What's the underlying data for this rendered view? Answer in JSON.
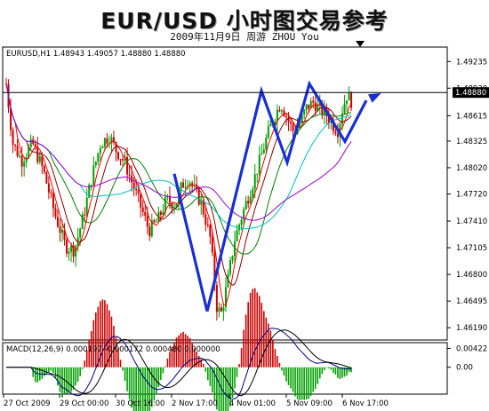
{
  "header": {
    "title": "EUR/USD 小时图交易参考",
    "subtitle": "2009年11月9日  周游 ZHOU You"
  },
  "chart_data": [
    {
      "type": "candlestick",
      "legend": "EURUSD,H1  1.48943 1.49057 1.48880 1.48880",
      "ylim": [
        1.4605,
        1.494
      ],
      "y_ticks": [
        "1.49235",
        "1.48930",
        "1.48615",
        "1.48325",
        "1.48020",
        "1.47720",
        "1.47410",
        "1.47105",
        "1.46800",
        "1.46495",
        "1.46190"
      ],
      "x_ticks": [
        "27 Oct 2009",
        "29 Oct 00:00",
        "30 Oct 16:00",
        "2 Nov 17:00",
        "4 Nov 01:00",
        "5 Nov 09:00",
        "6 Nov 17:00"
      ],
      "current_price": "1.48880",
      "price_path": [
        [
          0,
          1.4898
        ],
        [
          6,
          1.483
        ],
        [
          14,
          1.481
        ],
        [
          24,
          1.483
        ],
        [
          34,
          1.4798
        ],
        [
          44,
          1.475
        ],
        [
          54,
          1.4712
        ],
        [
          62,
          1.4708
        ],
        [
          70,
          1.4745
        ],
        [
          78,
          1.4792
        ],
        [
          86,
          1.483
        ],
        [
          94,
          1.4838
        ],
        [
          100,
          1.4822
        ],
        [
          108,
          1.4808
        ],
        [
          116,
          1.478
        ],
        [
          124,
          1.4752
        ],
        [
          130,
          1.473
        ],
        [
          138,
          1.4742
        ],
        [
          146,
          1.4765
        ],
        [
          154,
          1.476
        ],
        [
          160,
          1.4782
        ],
        [
          166,
          1.479
        ],
        [
          172,
          1.4775
        ],
        [
          178,
          1.476
        ],
        [
          186,
          1.472
        ],
        [
          192,
          1.464
        ],
        [
          196,
          1.4636
        ],
        [
          202,
          1.4675
        ],
        [
          208,
          1.472
        ],
        [
          214,
          1.4745
        ],
        [
          220,
          1.4768
        ],
        [
          226,
          1.479
        ],
        [
          232,
          1.4815
        ],
        [
          238,
          1.484
        ],
        [
          244,
          1.486
        ],
        [
          250,
          1.4876
        ],
        [
          256,
          1.4858
        ],
        [
          262,
          1.4842
        ],
        [
          268,
          1.4855
        ],
        [
          274,
          1.4872
        ],
        [
          280,
          1.4877
        ],
        [
          286,
          1.4868
        ],
        [
          292,
          1.4862
        ],
        [
          298,
          1.485
        ],
        [
          302,
          1.4845
        ],
        [
          306,
          1.4868
        ],
        [
          310,
          1.4885
        ],
        [
          314,
          1.4878
        ]
      ],
      "moving_averages": [
        {
          "color": "#ff0000",
          "period": 5
        },
        {
          "color": "#8b0000",
          "period": 10
        },
        {
          "color": "#008000",
          "period": 20
        },
        {
          "color": "#00bfbf",
          "period": 34
        },
        {
          "color": "#9900cc",
          "period": 55
        }
      ],
      "annotations": {
        "color": "#1a2ed6",
        "zigzag": [
          [
            196,
            1.4795
          ],
          [
            233,
            1.4638
          ],
          [
            294,
            1.489
          ],
          [
            323,
            1.4808
          ],
          [
            348,
            1.4898
          ],
          [
            388,
            1.4832
          ],
          [
            412,
            1.4879
          ]
        ],
        "arrow_to": [
          426,
          1.4886
        ]
      }
    },
    {
      "type": "histogram",
      "legend": "MACD(12,26,9) 0.000197 -0.000172 0.000480 0.000000",
      "y_ticks": [
        "0.00422",
        "0.00"
      ],
      "ylim": [
        -0.006,
        0.0055
      ]
    }
  ]
}
